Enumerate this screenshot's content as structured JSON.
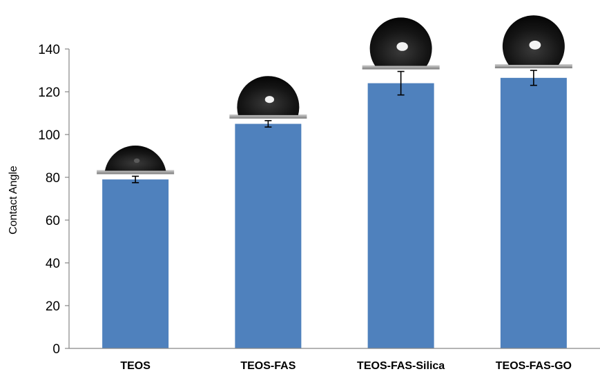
{
  "chart_data": {
    "type": "bar",
    "categories": [
      "TEOS",
      "TEOS-FAS",
      "TEOS-FAS-Silica",
      "TEOS-FAS-GO"
    ],
    "values": [
      79,
      105,
      124,
      126.5
    ],
    "errors": [
      1.5,
      1.5,
      5.5,
      3.5
    ],
    "ylabel": "Contact Angle",
    "xlabel": "",
    "ylim": [
      0,
      140
    ],
    "yticks": [
      0,
      20,
      40,
      60,
      80,
      100,
      120,
      140
    ],
    "grid": false,
    "bar_color": "#4f81bd",
    "droplet_images": true
  }
}
